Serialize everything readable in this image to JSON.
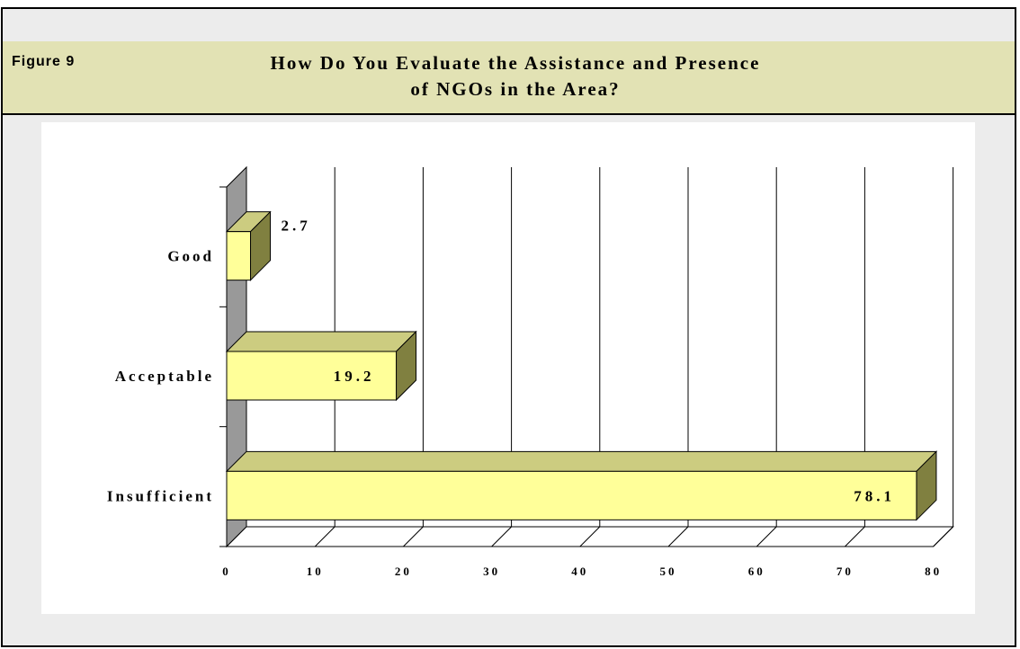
{
  "figure_label": "Figure 9",
  "chart_data": {
    "type": "bar",
    "orientation": "horizontal",
    "title": [
      "How Do You Evaluate the Assistance and Presence",
      "of NGOs in the Area?"
    ],
    "categories": [
      "Good",
      "Acceptable",
      "Insufficient"
    ],
    "values": [
      2.7,
      19.2,
      78.1
    ],
    "data_labels": [
      "2.7",
      "19.2",
      "78.1"
    ],
    "xlim": [
      0,
      80
    ],
    "x_ticks": [
      0,
      10,
      20,
      30,
      40,
      50,
      60,
      70,
      80
    ],
    "grid": true,
    "three_d": true,
    "colors": {
      "bar_front": "#ffff99",
      "bar_top": "#cccc80",
      "bar_side": "#808040",
      "wall": "#999999"
    }
  }
}
